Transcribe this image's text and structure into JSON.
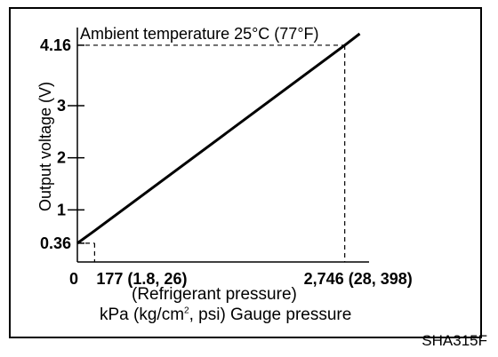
{
  "chart_data": {
    "type": "line",
    "title": "Ambient temperature 25°C (77°F)",
    "ylabel": "Output voltage (V)",
    "xlabel": "(Refrigerant pressure)",
    "xlabel_unit_pre": "kPa (kg/cm",
    "xlabel_unit_sup": "2",
    "xlabel_unit_post": ", psi) Gauge pressure",
    "figure_code": "SHA315F",
    "x_ticks": [
      {
        "value": 0,
        "label": "0"
      },
      {
        "value": 177,
        "label": "177 (1.8, 26)"
      },
      {
        "value": 2746,
        "label": "2,746 (28, 398)"
      }
    ],
    "y_ticks": [
      {
        "value": 0.36,
        "label": "0.36"
      },
      {
        "value": 1,
        "label": "1"
      },
      {
        "value": 2,
        "label": "2"
      },
      {
        "value": 3,
        "label": "3"
      },
      {
        "value": 4.16,
        "label": "4.16"
      }
    ],
    "series": [
      {
        "points": [
          [
            0,
            0.36
          ],
          [
            177,
            0.6
          ],
          [
            2746,
            4.16
          ],
          [
            2900,
            4.38
          ]
        ]
      }
    ],
    "reference_lines": [
      {
        "x": 177,
        "y": 0.36
      },
      {
        "x": 2746,
        "y": 4.16
      }
    ],
    "xlim": [
      0,
      2950
    ],
    "ylim": [
      0,
      4.5
    ],
    "grid": false
  }
}
